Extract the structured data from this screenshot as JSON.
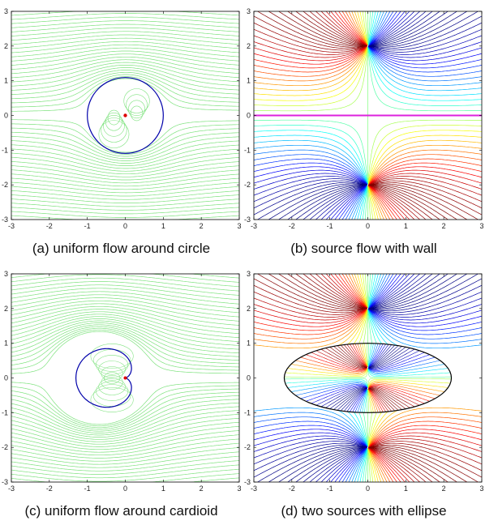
{
  "figure": {
    "panels": [
      {
        "id": "a",
        "caption": "(a) uniform flow around circle",
        "type": "uniform-circle",
        "boundary": "circle",
        "boundary_color": "#0000aa",
        "xlim": [
          -3,
          3
        ],
        "ylim": [
          -3,
          3
        ],
        "xticks": [
          "-3",
          "-2",
          "-1",
          "0",
          "1",
          "2",
          "3"
        ],
        "yticks": [
          "3",
          "2",
          "1",
          "0",
          "-1",
          "-2",
          "-3"
        ]
      },
      {
        "id": "b",
        "caption": "(b) source flow with wall",
        "type": "source-wall",
        "boundary": "wall",
        "boundary_color": "#dd22dd",
        "xlim": [
          -3,
          3
        ],
        "ylim": [
          -3,
          3
        ],
        "xticks": [
          "-3",
          "-2",
          "-1",
          "0",
          "1",
          "2",
          "3"
        ],
        "yticks": [
          "3",
          "2",
          "1",
          "0",
          "-1",
          "-2",
          "-3"
        ]
      },
      {
        "id": "c",
        "caption": "(c) uniform flow around cardioid",
        "type": "uniform-cardioid",
        "boundary": "cardioid",
        "boundary_color": "#0000aa",
        "xlim": [
          -3,
          3
        ],
        "ylim": [
          -3,
          3
        ],
        "xticks": [
          "-3",
          "-2",
          "-1",
          "0",
          "1",
          "2",
          "3"
        ],
        "yticks": [
          "3",
          "2",
          "1",
          "0",
          "-1",
          "-2",
          "-3"
        ]
      },
      {
        "id": "d",
        "caption": "(d) two sources with ellipse",
        "type": "two-sources-ellipse",
        "boundary": "ellipse",
        "boundary_color": "#000000",
        "xlim": [
          -3,
          3
        ],
        "ylim": [
          -3,
          3
        ],
        "xticks": [
          "-3",
          "-2",
          "-1",
          "0",
          "1",
          "2",
          "3"
        ],
        "yticks": [
          "3",
          "2",
          "1",
          "0",
          "-1",
          "-2",
          "-3"
        ]
      }
    ],
    "colors": {
      "streamline_green": "#7ee27e",
      "axis": "#000000"
    }
  }
}
